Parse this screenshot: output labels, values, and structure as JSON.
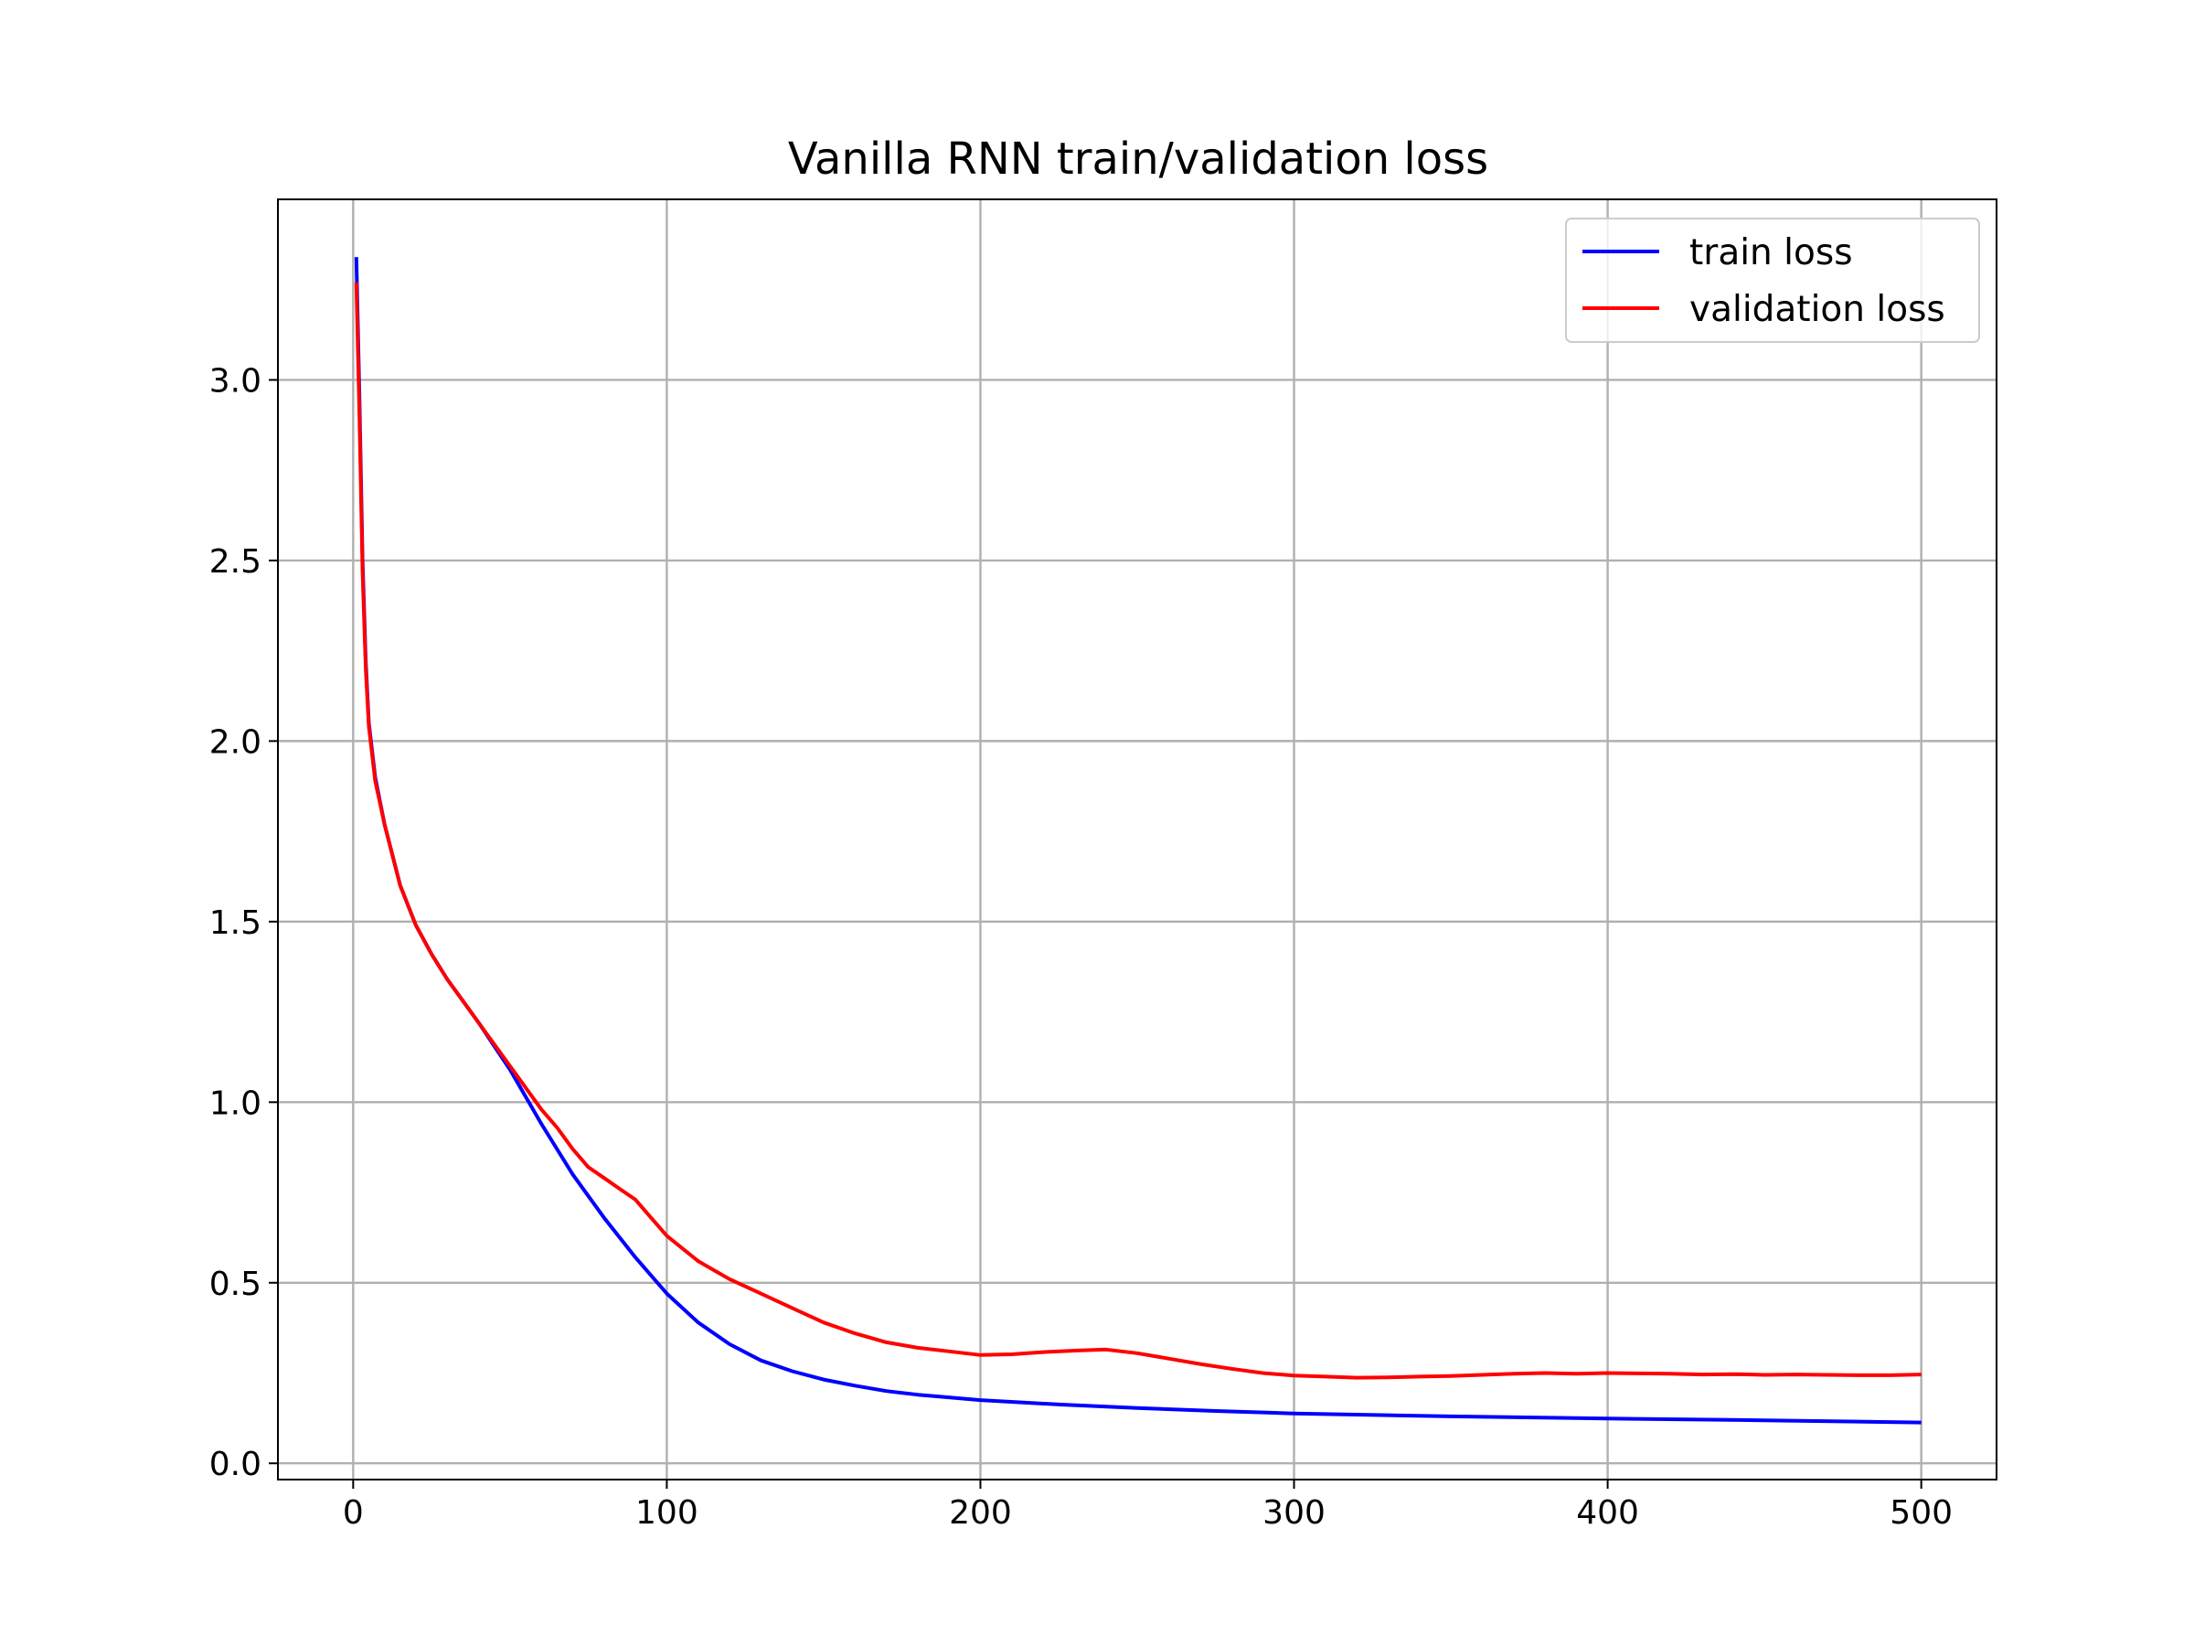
{
  "chart_data": {
    "type": "line",
    "title": "Vanilla RNN train/validation loss",
    "xlabel": "",
    "ylabel": "",
    "xlim": [
      -24,
      524
    ],
    "ylim": [
      -0.045,
      3.5
    ],
    "xticks": [
      0,
      100,
      200,
      300,
      400,
      500
    ],
    "yticks": [
      0.0,
      0.5,
      1.0,
      1.5,
      2.0,
      2.5,
      3.0
    ],
    "grid": true,
    "legend_position": "top-right",
    "series": [
      {
        "name": "train loss",
        "color": "#0000ff",
        "x": [
          1,
          2,
          3,
          4,
          5,
          7,
          10,
          15,
          20,
          25,
          30,
          40,
          50,
          60,
          70,
          80,
          90,
          100,
          110,
          120,
          130,
          140,
          150,
          160,
          170,
          180,
          200,
          225,
          250,
          275,
          300,
          350,
          400,
          450,
          500
        ],
        "y": [
          3.34,
          2.95,
          2.5,
          2.22,
          2.05,
          1.9,
          1.77,
          1.6,
          1.49,
          1.41,
          1.34,
          1.22,
          1.09,
          0.94,
          0.8,
          0.68,
          0.57,
          0.47,
          0.39,
          0.33,
          0.285,
          0.255,
          0.232,
          0.215,
          0.2,
          0.19,
          0.175,
          0.163,
          0.153,
          0.145,
          0.138,
          0.13,
          0.124,
          0.119,
          0.113
        ]
      },
      {
        "name": "validation loss",
        "color": "#ff0000",
        "x": [
          1,
          2,
          3,
          4,
          5,
          7,
          10,
          15,
          20,
          25,
          30,
          40,
          50,
          60,
          65,
          70,
          75,
          80,
          85,
          90,
          95,
          100,
          110,
          120,
          130,
          140,
          150,
          160,
          170,
          180,
          190,
          200,
          210,
          220,
          230,
          240,
          250,
          260,
          270,
          280,
          290,
          300,
          310,
          320,
          330,
          340,
          350,
          360,
          370,
          380,
          390,
          400,
          410,
          420,
          430,
          440,
          450,
          460,
          470,
          480,
          490,
          500
        ],
        "y": [
          3.27,
          2.9,
          2.47,
          2.2,
          2.04,
          1.89,
          1.77,
          1.6,
          1.49,
          1.41,
          1.34,
          1.22,
          1.1,
          0.98,
          0.93,
          0.87,
          0.82,
          0.79,
          0.76,
          0.73,
          0.68,
          0.63,
          0.56,
          0.51,
          0.47,
          0.43,
          0.39,
          0.36,
          0.335,
          0.32,
          0.31,
          0.3,
          0.302,
          0.308,
          0.312,
          0.315,
          0.305,
          0.29,
          0.275,
          0.262,
          0.25,
          0.243,
          0.24,
          0.237,
          0.238,
          0.24,
          0.242,
          0.245,
          0.248,
          0.25,
          0.248,
          0.25,
          0.249,
          0.248,
          0.246,
          0.247,
          0.245,
          0.246,
          0.245,
          0.244,
          0.244,
          0.246
        ]
      }
    ]
  }
}
